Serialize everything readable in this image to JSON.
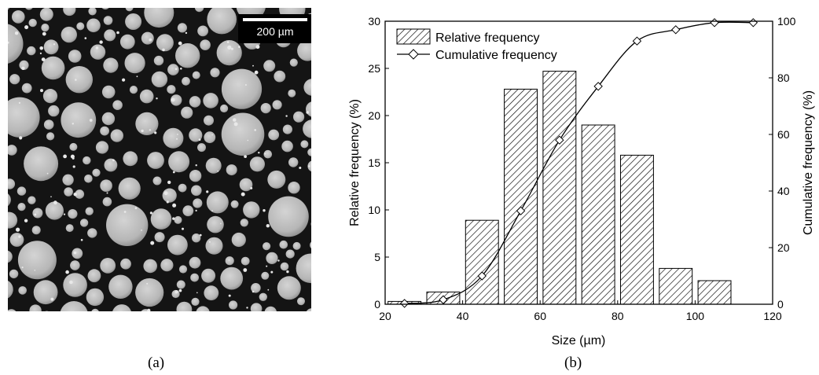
{
  "image_panel": {
    "scale_bar_label": "200 µm",
    "caption": "(a)"
  },
  "chart_caption": "(b)",
  "chart_data": {
    "type": "bar",
    "xlabel": "Size (µm)",
    "ylabel": "Relative frequency (%)",
    "y2label": "Cumulative frequency (%)",
    "xlim": [
      20,
      120
    ],
    "ylim": [
      0,
      30
    ],
    "y2lim": [
      0,
      100
    ],
    "xticks": [
      20,
      40,
      60,
      80,
      100,
      120
    ],
    "yticks": [
      0,
      5,
      10,
      15,
      20,
      25,
      30
    ],
    "y2ticks": [
      0,
      20,
      40,
      60,
      80,
      100
    ],
    "grid": false,
    "legend_position": "top-left",
    "series": [
      {
        "name": "Relative frequency",
        "kind": "bar",
        "pattern": "diagonal-hatch",
        "bar_width": 8.5,
        "x": [
          25,
          35,
          45,
          55,
          65,
          75,
          85,
          95,
          105
        ],
        "values": [
          0.3,
          1.3,
          8.9,
          22.8,
          24.7,
          19.0,
          15.8,
          3.8,
          2.5
        ]
      },
      {
        "name": "Cumulative frequency",
        "kind": "line",
        "marker": "diamond-open",
        "axis": "right",
        "x": [
          25,
          35,
          45,
          55,
          65,
          75,
          85,
          95,
          105,
          115
        ],
        "values": [
          0.3,
          1.6,
          10.0,
          33.0,
          58.0,
          77.0,
          93.0,
          97.0,
          99.5,
          99.5
        ]
      }
    ]
  }
}
